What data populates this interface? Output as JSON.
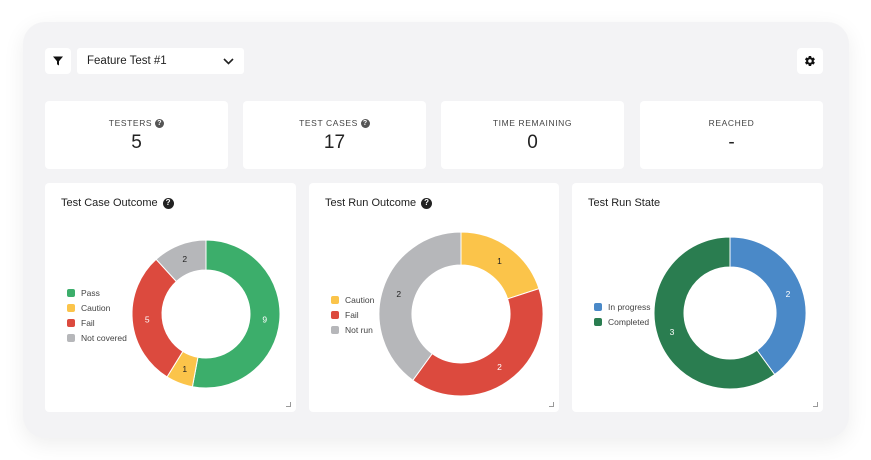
{
  "toolbar": {
    "filter_icon": "filter-icon",
    "selected_test": "Feature Test #1",
    "dropdown_icon": "chevron-down-icon",
    "settings_icon": "gear-icon"
  },
  "stats": [
    {
      "label": "TESTERS",
      "value": "5",
      "help": true
    },
    {
      "label": "TEST CASES",
      "value": "17",
      "help": true
    },
    {
      "label": "TIME REMAINING",
      "value": "0",
      "help": false
    },
    {
      "label": "REACHED",
      "value": "-",
      "help": false
    }
  ],
  "help_glyph": "?",
  "cards": [
    {
      "title": "Test Case Outcome",
      "help": true,
      "chart_data": {
        "type": "pie",
        "variant": "donut",
        "title": "Test Case Outcome",
        "legend_position": "left",
        "slices": [
          {
            "label": "Pass",
            "value": 9,
            "color": "#3cae6b"
          },
          {
            "label": "Caution",
            "value": 1,
            "color": "#fbc44a"
          },
          {
            "label": "Fail",
            "value": 5,
            "color": "#dc4a3e"
          },
          {
            "label": "Not covered",
            "value": 2,
            "color": "#b6b7ba"
          }
        ]
      }
    },
    {
      "title": "Test Run Outcome",
      "help": true,
      "chart_data": {
        "type": "pie",
        "variant": "donut",
        "title": "Test Run Outcome",
        "legend_position": "left",
        "slices": [
          {
            "label": "Caution",
            "value": 1,
            "color": "#fbc44a"
          },
          {
            "label": "Fail",
            "value": 2,
            "color": "#dc4a3e"
          },
          {
            "label": "Not run",
            "value": 2,
            "color": "#b6b7ba"
          }
        ]
      }
    },
    {
      "title": "Test Run State",
      "help": false,
      "chart_data": {
        "type": "pie",
        "variant": "donut",
        "title": "Test Run State",
        "legend_position": "left",
        "slices": [
          {
            "label": "In progress",
            "value": 2,
            "color": "#4a89c8"
          },
          {
            "label": "Completed",
            "value": 3,
            "color": "#2a7d50"
          }
        ]
      }
    }
  ]
}
